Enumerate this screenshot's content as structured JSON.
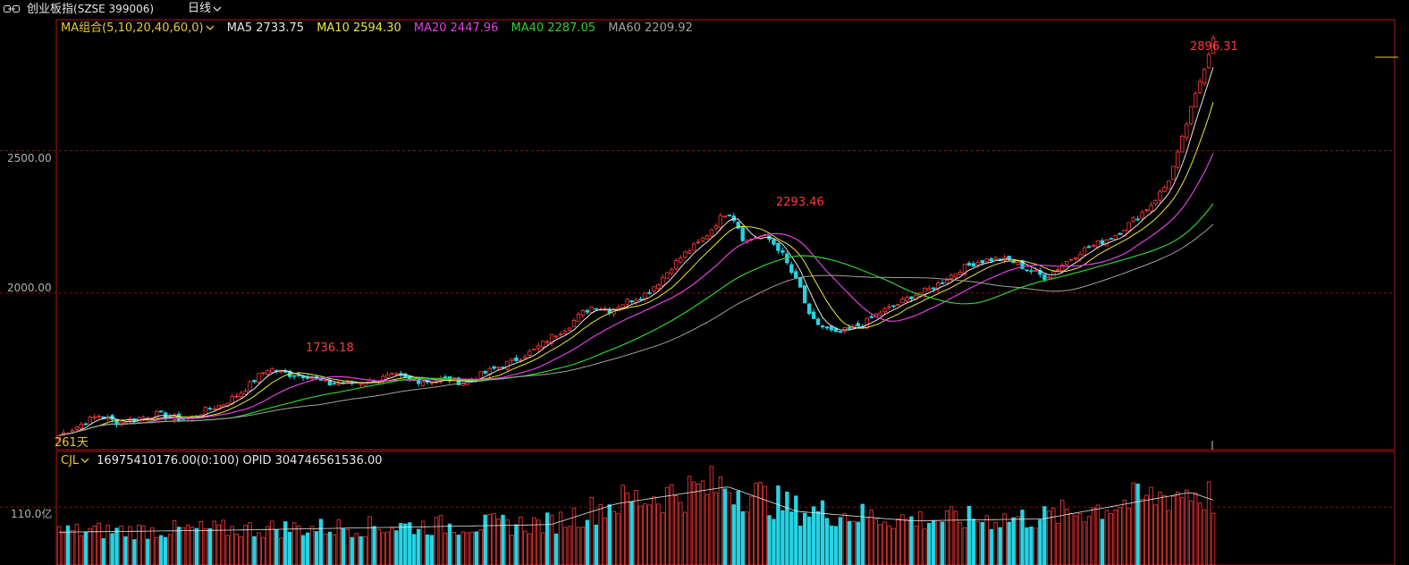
{
  "header": {
    "icon": "link-icon",
    "title": "创业板指",
    "code": "(SZSE 399006)",
    "period": "日线"
  },
  "legend": {
    "ma_group": "MA组合(5,10,20,40,60,0)",
    "ma5": "MA5 2733.75",
    "ma10": "MA10 2594.30",
    "ma20": "MA20 2447.96",
    "ma40": "MA40 2287.05",
    "ma60": "MA60 2209.92"
  },
  "colors": {
    "ma_group": "#e8c83c",
    "ma5": "#e6e6e6",
    "ma10": "#e8e83c",
    "ma20": "#e040e0",
    "ma40": "#30d030",
    "ma60": "#a0a0a0",
    "up": "#ff3a3a",
    "down": "#27d3e3",
    "grid": "#8a1010"
  },
  "price_axis": {
    "labels": [
      "2500.00",
      "2000.00"
    ]
  },
  "volume_axis": {
    "label": "110.0亿"
  },
  "span_label": "261天",
  "peaks": {
    "p1": "1736.18",
    "p2": "2293.46",
    "p3": "2896.31"
  },
  "volume_legend": {
    "name": "CJL",
    "values": "16975410176.00(0:100)  OPID 304746561536.00"
  },
  "chart_data": {
    "type": "candlestick",
    "trading_days": 261,
    "price_ylim": [
      1450,
      2960
    ],
    "price_ticks": [
      2500,
      2000
    ],
    "path": [
      [
        0,
        1500
      ],
      [
        12,
        1535
      ],
      [
        24,
        1570
      ],
      [
        36,
        1545
      ],
      [
        48,
        1560
      ],
      [
        60,
        1575
      ],
      [
        70,
        1560
      ],
      [
        80,
        1560
      ],
      [
        90,
        1590
      ],
      [
        100,
        1610
      ],
      [
        112,
        1655
      ],
      [
        122,
        1710
      ],
      [
        128,
        1736
      ],
      [
        140,
        1715
      ],
      [
        152,
        1710
      ],
      [
        164,
        1680
      ],
      [
        176,
        1685
      ],
      [
        190,
        1690
      ],
      [
        204,
        1710
      ],
      [
        214,
        1695
      ],
      [
        226,
        1690
      ],
      [
        236,
        1700
      ],
      [
        246,
        1685
      ],
      [
        256,
        1710
      ],
      [
        268,
        1740
      ],
      [
        278,
        1765
      ],
      [
        290,
        1800
      ],
      [
        300,
        1845
      ],
      [
        310,
        1880
      ],
      [
        318,
        1925
      ],
      [
        326,
        1955
      ],
      [
        336,
        1940
      ],
      [
        346,
        1970
      ],
      [
        356,
        1990
      ],
      [
        366,
        2040
      ],
      [
        374,
        2095
      ],
      [
        382,
        2140
      ],
      [
        390,
        2175
      ],
      [
        396,
        2210
      ],
      [
        402,
        2255
      ],
      [
        408,
        2290
      ],
      [
        413,
        2250
      ],
      [
        418,
        2180
      ],
      [
        426,
        2200
      ],
      [
        432,
        2195
      ],
      [
        440,
        2150
      ],
      [
        446,
        2080
      ],
      [
        452,
        2020
      ],
      [
        458,
        1910
      ],
      [
        466,
        1880
      ],
      [
        474,
        1855
      ],
      [
        482,
        1875
      ],
      [
        490,
        1890
      ],
      [
        500,
        1930
      ],
      [
        510,
        1955
      ],
      [
        520,
        1990
      ],
      [
        530,
        2010
      ],
      [
        540,
        2045
      ],
      [
        550,
        2085
      ],
      [
        560,
        2110
      ],
      [
        570,
        2120
      ],
      [
        580,
        2115
      ],
      [
        592,
        2080
      ],
      [
        602,
        2055
      ],
      [
        612,
        2100
      ],
      [
        624,
        2150
      ],
      [
        636,
        2180
      ],
      [
        646,
        2210
      ],
      [
        656,
        2260
      ],
      [
        666,
        2310
      ],
      [
        676,
        2385
      ],
      [
        682,
        2480
      ],
      [
        688,
        2600
      ],
      [
        694,
        2710
      ],
      [
        700,
        2820
      ],
      [
        704,
        2896
      ]
    ],
    "ma_series": [
      {
        "name": "MA10",
        "lag": 5
      },
      {
        "name": "MA20",
        "lag": 10
      },
      {
        "name": "MA40",
        "lag": 20
      },
      {
        "name": "MA60",
        "lag": 30
      }
    ],
    "volume_ylim": [
      0,
      210
    ],
    "volume_tick": 110,
    "volume_peaks": [
      [
        0,
        75
      ],
      [
        100,
        80
      ],
      [
        300,
        95
      ],
      [
        340,
        150
      ],
      [
        408,
        195
      ],
      [
        450,
        130
      ],
      [
        520,
        105
      ],
      [
        600,
        110
      ],
      [
        690,
        180
      ],
      [
        704,
        160
      ]
    ]
  }
}
